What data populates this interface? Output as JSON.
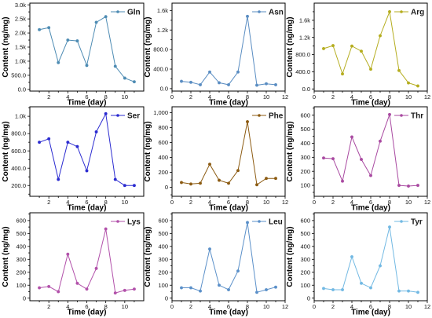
{
  "chart_data": [
    {
      "type": "line",
      "x": [
        1,
        2,
        3,
        4,
        5,
        6,
        7,
        8,
        9,
        10,
        11
      ],
      "series": [
        {
          "name": "Gln",
          "color": "#4d8bb3",
          "values": [
            2120,
            2190,
            950,
            1750,
            1720,
            850,
            2380,
            2580,
            820,
            400,
            270
          ]
        }
      ],
      "xlabel": "Time (day)",
      "ylabel": "Content (ng/mg)",
      "xlim": [
        0,
        12
      ],
      "ylim": [
        -60,
        3060
      ],
      "xticks": [
        2,
        4,
        6,
        8,
        10
      ],
      "yticks": [
        {
          "value": 0,
          "label": "0.0"
        },
        {
          "value": 500,
          "label": "500.0"
        },
        {
          "value": 1000,
          "label": "1.0k"
        },
        {
          "value": 1500,
          "label": "1.5k"
        },
        {
          "value": 2000,
          "label": "2.0k"
        },
        {
          "value": 2500,
          "label": "2.5k"
        },
        {
          "value": 3000,
          "label": "3.0k"
        }
      ],
      "legend_position": "top-right",
      "grid": false
    },
    {
      "type": "line",
      "x": [
        1,
        2,
        3,
        4,
        5,
        6,
        7,
        8,
        9,
        10,
        11
      ],
      "series": [
        {
          "name": "Asn",
          "color": "#5a8dc2",
          "values": [
            150,
            130,
            80,
            340,
            120,
            80,
            340,
            1480,
            70,
            100,
            80
          ]
        }
      ],
      "xlabel": "Time (day)",
      "ylabel": "Content (ng/mg)",
      "xlim": [
        0,
        12
      ],
      "ylim": [
        -50,
        1750
      ],
      "xticks": [
        0,
        2,
        4,
        6,
        8,
        10,
        12
      ],
      "yticks": [
        {
          "value": 0,
          "label": "0.0"
        },
        {
          "value": 400,
          "label": "400.0"
        },
        {
          "value": 800,
          "label": "800.0"
        },
        {
          "value": 1200,
          "label": "1.2k"
        },
        {
          "value": 1600,
          "label": "1.6k"
        }
      ],
      "legend_position": "top-right",
      "grid": false
    },
    {
      "type": "line",
      "x": [
        1,
        2,
        3,
        4,
        5,
        6,
        7,
        8,
        9,
        10,
        11
      ],
      "series": [
        {
          "name": "Arg",
          "color": "#b5ad1f",
          "values": [
            940,
            1010,
            350,
            1000,
            880,
            460,
            1240,
            1800,
            430,
            140,
            70
          ]
        }
      ],
      "xlabel": "Time (day)",
      "ylabel": "Content (ng/mg)",
      "xlim": [
        0,
        12
      ],
      "ylim": [
        -50,
        2000
      ],
      "xticks": [
        0,
        2,
        4,
        6,
        8,
        10,
        12
      ],
      "yticks": [
        {
          "value": 0,
          "label": "0.0"
        },
        {
          "value": 400,
          "label": "400.0"
        },
        {
          "value": 800,
          "label": "800.0"
        },
        {
          "value": 1200,
          "label": "1.2k"
        },
        {
          "value": 1600,
          "label": "1.6k"
        }
      ],
      "legend_position": "top-right",
      "grid": false
    },
    {
      "type": "line",
      "x": [
        1,
        2,
        3,
        4,
        5,
        6,
        7,
        8,
        9,
        10,
        11
      ],
      "series": [
        {
          "name": "Ser",
          "color": "#2b2bd0",
          "values": [
            700,
            740,
            270,
            700,
            650,
            370,
            820,
            1030,
            270,
            200,
            200
          ]
        }
      ],
      "xlabel": "Time (day)",
      "ylabel": "Content (ng/mg)",
      "xlim": [
        0,
        12
      ],
      "ylim": [
        75,
        1110
      ],
      "xticks": [
        2,
        4,
        6,
        8,
        10
      ],
      "yticks": [
        {
          "value": 200,
          "label": "200.0"
        },
        {
          "value": 400,
          "label": "400.0"
        },
        {
          "value": 600,
          "label": "600.0"
        },
        {
          "value": 800,
          "label": "800.0"
        },
        {
          "value": 1000,
          "label": "1.0k"
        }
      ],
      "legend_position": "top-right",
      "grid": false
    },
    {
      "type": "line",
      "x": [
        1,
        2,
        3,
        4,
        5,
        6,
        7,
        8,
        9,
        10,
        11
      ],
      "series": [
        {
          "name": "Phe",
          "color": "#8c5b12",
          "values": [
            65,
            45,
            55,
            310,
            95,
            55,
            225,
            880,
            35,
            120,
            120
          ]
        }
      ],
      "xlabel": "Time (day)",
      "ylabel": "Content (ng/mg)",
      "xlim": [
        0,
        12
      ],
      "ylim": [
        -120,
        1080
      ],
      "xticks": [
        0,
        2,
        4,
        6,
        8,
        10,
        12
      ],
      "yticks": [
        {
          "value": 0,
          "label": "0"
        },
        {
          "value": 200,
          "label": "200"
        },
        {
          "value": 400,
          "label": "400"
        },
        {
          "value": 600,
          "label": "600"
        },
        {
          "value": 800,
          "label": "800"
        },
        {
          "value": 1000,
          "label": "1,000"
        }
      ],
      "legend_position": "top-right",
      "grid": false
    },
    {
      "type": "line",
      "x": [
        1,
        2,
        3,
        4,
        5,
        6,
        7,
        8,
        9,
        10,
        11
      ],
      "series": [
        {
          "name": "Thr",
          "color": "#a94aa1",
          "values": [
            295,
            290,
            130,
            445,
            285,
            170,
            415,
            605,
            100,
            95,
            100
          ]
        }
      ],
      "xlabel": "Time (day)",
      "ylabel": "Content (ng/mg)",
      "xlim": [
        0,
        12
      ],
      "ylim": [
        22,
        660
      ],
      "xticks": [
        0,
        2,
        4,
        6,
        8,
        10,
        12
      ],
      "yticks": [
        {
          "value": 100,
          "label": "100"
        },
        {
          "value": 200,
          "label": "200"
        },
        {
          "value": 300,
          "label": "300"
        },
        {
          "value": 400,
          "label": "400"
        },
        {
          "value": 500,
          "label": "500"
        },
        {
          "value": 600,
          "label": "600"
        }
      ],
      "legend_position": "top-right",
      "grid": false
    },
    {
      "type": "line",
      "x": [
        1,
        2,
        3,
        4,
        5,
        6,
        7,
        8,
        9,
        10,
        11
      ],
      "series": [
        {
          "name": "Lys",
          "color": "#b251aa",
          "values": [
            80,
            90,
            50,
            340,
            115,
            70,
            230,
            535,
            40,
            60,
            70
          ]
        }
      ],
      "xlabel": "Time (day)",
      "ylabel": "Content (ng/mg)",
      "xlim": [
        0,
        12
      ],
      "ylim": [
        -20,
        660
      ],
      "xticks": [
        2,
        4,
        6,
        8,
        10
      ],
      "yticks": [
        {
          "value": 0,
          "label": "0"
        },
        {
          "value": 100,
          "label": "100"
        },
        {
          "value": 200,
          "label": "200"
        },
        {
          "value": 300,
          "label": "300"
        },
        {
          "value": 400,
          "label": "400"
        },
        {
          "value": 500,
          "label": "500"
        },
        {
          "value": 600,
          "label": "600"
        }
      ],
      "legend_position": "top-right",
      "grid": false
    },
    {
      "type": "line",
      "x": [
        1,
        2,
        3,
        4,
        5,
        6,
        7,
        8,
        9,
        10,
        11
      ],
      "series": [
        {
          "name": "Leu",
          "color": "#5b90c9",
          "values": [
            80,
            80,
            55,
            380,
            100,
            65,
            210,
            585,
            45,
            65,
            85
          ]
        }
      ],
      "xlabel": "Time (day)",
      "ylabel": "Content (ng/mg)",
      "xlim": [
        0,
        12
      ],
      "ylim": [
        -20,
        660
      ],
      "xticks": [
        0,
        2,
        4,
        6,
        8,
        10,
        12
      ],
      "yticks": [
        {
          "value": 0,
          "label": "0"
        },
        {
          "value": 100,
          "label": "100"
        },
        {
          "value": 200,
          "label": "200"
        },
        {
          "value": 300,
          "label": "300"
        },
        {
          "value": 400,
          "label": "400"
        },
        {
          "value": 500,
          "label": "500"
        },
        {
          "value": 600,
          "label": "600"
        }
      ],
      "legend_position": "top-right",
      "grid": false
    },
    {
      "type": "line",
      "x": [
        1,
        2,
        3,
        4,
        5,
        6,
        7,
        8,
        9,
        10,
        11
      ],
      "series": [
        {
          "name": "Tyr",
          "color": "#72b9e3",
          "values": [
            75,
            65,
            65,
            320,
            115,
            80,
            250,
            550,
            55,
            55,
            45
          ]
        }
      ],
      "xlabel": "Time (day)",
      "ylabel": "Content (ng/mg)",
      "xlim": [
        0,
        12
      ],
      "ylim": [
        -20,
        660
      ],
      "xticks": [
        0,
        2,
        4,
        6,
        8,
        10,
        12
      ],
      "yticks": [
        {
          "value": 0,
          "label": "0"
        },
        {
          "value": 100,
          "label": "100"
        },
        {
          "value": 200,
          "label": "200"
        },
        {
          "value": 300,
          "label": "300"
        },
        {
          "value": 400,
          "label": "400"
        },
        {
          "value": 500,
          "label": "500"
        },
        {
          "value": 600,
          "label": "600"
        }
      ],
      "legend_position": "top-right",
      "grid": false
    }
  ]
}
